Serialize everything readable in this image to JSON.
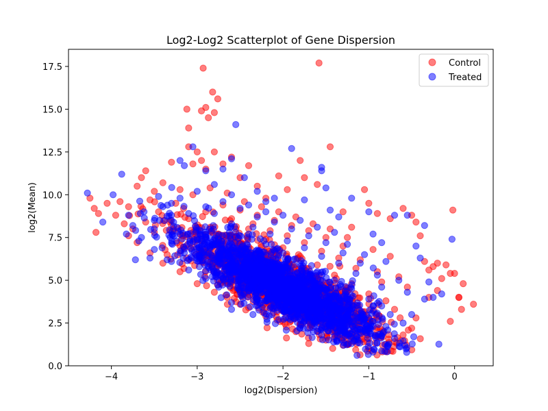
{
  "chart_data": {
    "type": "scatter",
    "title": "Log2-Log2 Scatterplot of Gene Dispersion",
    "xlabel": "log2(Dispersion)",
    "ylabel": "log2(Mean)",
    "xlim": [
      -4.5,
      0.45
    ],
    "ylim": [
      0,
      18.5
    ],
    "xticks": [
      -4,
      -3,
      -2,
      -1,
      0
    ],
    "xtick_labels": [
      "−4",
      "−3",
      "−2",
      "−1",
      "0"
    ],
    "yticks": [
      0.0,
      2.5,
      5.0,
      7.5,
      10.0,
      12.5,
      15.0,
      17.5
    ],
    "ytick_labels": [
      "0.0",
      "2.5",
      "5.0",
      "7.5",
      "10.0",
      "12.5",
      "15.0",
      "17.5"
    ],
    "grid": false,
    "legend_position": "top-right",
    "series": [
      {
        "name": "Control",
        "color": "#ff0000",
        "alpha": 0.5,
        "points": [
          [
            -4.25,
            9.8
          ],
          [
            -4.2,
            9.2
          ],
          [
            -4.18,
            7.8
          ],
          [
            -4.15,
            8.9
          ],
          [
            -4.05,
            9.5
          ],
          [
            -3.95,
            8.8
          ],
          [
            -3.9,
            9.6
          ],
          [
            -3.85,
            8.3
          ],
          [
            -3.8,
            9.3
          ],
          [
            -3.75,
            8.0
          ],
          [
            -3.7,
            10.5
          ],
          [
            -3.65,
            11.0
          ],
          [
            -3.6,
            11.4
          ],
          [
            -3.55,
            9.7
          ],
          [
            -3.5,
            10.2
          ],
          [
            -3.4,
            10.7
          ],
          [
            -3.3,
            11.9
          ],
          [
            -3.2,
            10.3
          ],
          [
            -3.1,
            12.8
          ],
          [
            -3.05,
            11.8
          ],
          [
            -3.0,
            12.5
          ],
          [
            -2.95,
            12.0
          ],
          [
            -2.9,
            11.5
          ],
          [
            -3.12,
            15.0
          ],
          [
            -3.1,
            13.9
          ],
          [
            -2.95,
            14.9
          ],
          [
            -2.9,
            15.1
          ],
          [
            -2.87,
            14.5
          ],
          [
            -2.8,
            14.8
          ],
          [
            -2.82,
            16.0
          ],
          [
            -2.76,
            15.6
          ],
          [
            -2.93,
            17.4
          ],
          [
            -2.8,
            12.5
          ],
          [
            -2.7,
            11.8
          ],
          [
            -2.6,
            12.2
          ],
          [
            -2.5,
            11.0
          ],
          [
            -2.4,
            11.7
          ],
          [
            -2.3,
            10.5
          ],
          [
            -2.2,
            9.8
          ],
          [
            -2.05,
            11.1
          ],
          [
            -1.95,
            10.3
          ],
          [
            -1.8,
            12.0
          ],
          [
            -1.75,
            11.0
          ],
          [
            -1.45,
            12.8
          ],
          [
            -1.58,
            17.7
          ],
          [
            -1.6,
            10.6
          ],
          [
            -1.3,
            9.0
          ],
          [
            -1.2,
            8.1
          ],
          [
            -1.05,
            10.3
          ],
          [
            -1.0,
            9.5
          ],
          [
            -0.9,
            8.9
          ],
          [
            -0.75,
            8.6
          ],
          [
            -0.6,
            9.2
          ],
          [
            -0.5,
            8.8
          ],
          [
            -0.45,
            8.4
          ],
          [
            -0.4,
            7.6
          ],
          [
            -0.35,
            6.1
          ],
          [
            -0.3,
            5.6
          ],
          [
            -0.25,
            5.8
          ],
          [
            -0.2,
            6.0
          ],
          [
            -0.15,
            5.1
          ],
          [
            -0.1,
            5.9
          ],
          [
            -0.05,
            5.4
          ],
          [
            -0.02,
            9.1
          ],
          [
            0.05,
            4.0
          ],
          [
            0.1,
            4.8
          ],
          [
            0.0,
            5.4
          ],
          [
            0.08,
            3.3
          ],
          [
            0.05,
            4.0
          ],
          [
            -0.05,
            2.6
          ],
          [
            0.22,
            3.6
          ],
          [
            -0.2,
            4.4
          ],
          [
            -0.3,
            4.0
          ],
          [
            -0.45,
            2.8
          ],
          [
            -0.5,
            2.2
          ],
          [
            -0.6,
            1.8
          ],
          [
            -0.7,
            1.4
          ],
          [
            -1.0,
            1.0
          ],
          [
            -1.3,
            1.2
          ],
          [
            -1.5,
            1.5
          ],
          [
            -1.7,
            1.3
          ],
          [
            -1.85,
            2.0
          ],
          [
            -2.0,
            2.6
          ],
          [
            -2.2,
            2.9
          ],
          [
            -2.4,
            3.4
          ],
          [
            -2.5,
            3.6
          ],
          [
            -2.65,
            4.0
          ],
          [
            -2.8,
            4.3
          ],
          [
            -3.0,
            4.8
          ],
          [
            -3.2,
            5.5
          ],
          [
            -3.4,
            6.0
          ],
          [
            -3.55,
            6.6
          ],
          [
            -3.7,
            7.2
          ],
          [
            -3.8,
            7.6
          ],
          [
            -2.6,
            8.6
          ],
          [
            -2.4,
            8.0
          ],
          [
            -2.2,
            7.4
          ],
          [
            -2.0,
            6.9
          ],
          [
            -1.8,
            6.4
          ],
          [
            -1.6,
            5.9
          ],
          [
            -1.4,
            5.3
          ],
          [
            -1.2,
            4.8
          ],
          [
            -1.0,
            4.2
          ],
          [
            -0.8,
            3.8
          ],
          [
            -0.7,
            3.3
          ],
          [
            -0.9,
            5.5
          ],
          [
            -1.1,
            6.2
          ],
          [
            -1.3,
            7.0
          ],
          [
            -1.5,
            7.5
          ],
          [
            -1.7,
            7.9
          ],
          [
            -1.9,
            8.2
          ],
          [
            -2.1,
            8.5
          ],
          [
            -2.3,
            8.8
          ],
          [
            -2.5,
            9.1
          ],
          [
            -2.7,
            9.4
          ],
          [
            -2.9,
            9.0
          ],
          [
            -3.1,
            8.6
          ],
          [
            -3.3,
            8.2
          ],
          [
            -3.5,
            7.8
          ],
          [
            -1.25,
            7.5
          ],
          [
            -0.95,
            6.8
          ],
          [
            -0.75,
            6.4
          ],
          [
            -0.65,
            5.2
          ],
          [
            -0.55,
            4.6
          ],
          [
            -0.85,
            4.9
          ],
          [
            -1.15,
            5.7
          ],
          [
            -1.35,
            6.3
          ],
          [
            -1.55,
            6.7
          ],
          [
            -1.75,
            7.2
          ],
          [
            -1.95,
            7.6
          ],
          [
            -2.15,
            7.9
          ],
          [
            -2.35,
            8.3
          ],
          [
            -2.55,
            8.0
          ],
          [
            -2.75,
            7.7
          ],
          [
            -2.95,
            7.3
          ],
          [
            -3.15,
            6.9
          ],
          [
            -3.35,
            6.5
          ],
          [
            -3.6,
            8.4
          ],
          [
            -3.45,
            9.0
          ],
          [
            -3.25,
            9.5
          ],
          [
            -3.05,
            10.0
          ],
          [
            -2.85,
            10.4
          ],
          [
            -2.65,
            10.1
          ],
          [
            -2.45,
            9.6
          ],
          [
            -2.25,
            9.3
          ],
          [
            -2.05,
            9.0
          ],
          [
            -1.85,
            8.7
          ],
          [
            -1.65,
            8.3
          ],
          [
            -1.45,
            8.0
          ]
        ]
      },
      {
        "name": "Treated",
        "color": "#0000ff",
        "alpha": 0.5,
        "points": [
          [
            -4.28,
            10.1
          ],
          [
            -4.1,
            8.4
          ],
          [
            -3.98,
            10.0
          ],
          [
            -3.88,
            11.2
          ],
          [
            -3.8,
            8.8
          ],
          [
            -3.72,
            6.2
          ],
          [
            -3.68,
            7.3
          ],
          [
            -3.62,
            9.0
          ],
          [
            -3.55,
            6.3
          ],
          [
            -3.5,
            8.5
          ],
          [
            -3.45,
            9.9
          ],
          [
            -3.3,
            9.5
          ],
          [
            -3.2,
            12.0
          ],
          [
            -3.15,
            11.7
          ],
          [
            -3.05,
            12.8
          ],
          [
            -2.9,
            11.4
          ],
          [
            -2.7,
            11.5
          ],
          [
            -2.6,
            12.1
          ],
          [
            -2.55,
            14.1
          ],
          [
            -2.45,
            11.0
          ],
          [
            -2.3,
            10.2
          ],
          [
            -2.2,
            9.6
          ],
          [
            -2.1,
            9.8
          ],
          [
            -1.9,
            12.7
          ],
          [
            -1.75,
            9.7
          ],
          [
            -1.55,
            11.6
          ],
          [
            -1.55,
            11.4
          ],
          [
            -1.5,
            10.4
          ],
          [
            -1.45,
            9.1
          ],
          [
            -1.35,
            8.7
          ],
          [
            -1.2,
            9.8
          ],
          [
            -1.0,
            9.0
          ],
          [
            -0.95,
            7.7
          ],
          [
            -0.85,
            7.2
          ],
          [
            -0.7,
            8.8
          ],
          [
            -0.55,
            8.8
          ],
          [
            -0.45,
            7.0
          ],
          [
            -0.35,
            8.2
          ],
          [
            -0.4,
            6.3
          ],
          [
            -0.3,
            4.9
          ],
          [
            -0.35,
            3.9
          ],
          [
            -0.25,
            4.0
          ],
          [
            -0.15,
            4.2
          ],
          [
            -0.03,
            7.4
          ],
          [
            -0.5,
            3.0
          ],
          [
            -0.6,
            2.5
          ],
          [
            -0.7,
            1.6
          ],
          [
            -0.95,
            0.8
          ],
          [
            -1.2,
            1.3
          ],
          [
            -1.4,
            1.7
          ],
          [
            -1.6,
            2.0
          ],
          [
            -1.75,
            2.6
          ],
          [
            -1.9,
            3.0
          ],
          [
            -2.1,
            3.5
          ],
          [
            -2.3,
            3.9
          ],
          [
            -2.5,
            4.3
          ],
          [
            -2.6,
            3.7
          ],
          [
            -2.75,
            4.6
          ],
          [
            -2.9,
            5.1
          ],
          [
            -3.1,
            5.6
          ],
          [
            -3.3,
            6.1
          ],
          [
            -3.5,
            6.8
          ],
          [
            -3.65,
            7.5
          ],
          [
            -3.75,
            8.2
          ],
          [
            -2.8,
            8.9
          ],
          [
            -2.6,
            8.3
          ],
          [
            -2.4,
            7.7
          ],
          [
            -2.2,
            7.1
          ],
          [
            -2.0,
            6.6
          ],
          [
            -1.8,
            6.0
          ],
          [
            -1.6,
            5.5
          ],
          [
            -1.4,
            5.0
          ],
          [
            -1.2,
            4.5
          ],
          [
            -1.0,
            3.9
          ],
          [
            -0.85,
            3.5
          ],
          [
            -0.75,
            3.0
          ],
          [
            -0.9,
            5.3
          ],
          [
            -1.1,
            6.0
          ],
          [
            -1.3,
            6.6
          ],
          [
            -1.5,
            7.2
          ],
          [
            -1.7,
            7.6
          ],
          [
            -1.9,
            8.0
          ],
          [
            -2.1,
            8.4
          ],
          [
            -2.3,
            8.7
          ],
          [
            -2.5,
            9.2
          ],
          [
            -2.7,
            9.6
          ],
          [
            -2.9,
            9.3
          ],
          [
            -3.1,
            8.9
          ],
          [
            -3.3,
            8.5
          ],
          [
            -3.5,
            8.0
          ],
          [
            -1.25,
            7.1
          ],
          [
            -1.05,
            6.5
          ],
          [
            -0.8,
            6.1
          ],
          [
            -0.65,
            5.0
          ],
          [
            -0.55,
            4.3
          ],
          [
            -0.85,
            4.6
          ],
          [
            -1.15,
            5.4
          ],
          [
            -1.35,
            6.0
          ],
          [
            -1.55,
            6.4
          ],
          [
            -1.75,
            6.9
          ],
          [
            -1.95,
            7.3
          ],
          [
            -2.15,
            7.7
          ],
          [
            -2.35,
            8.1
          ],
          [
            -2.55,
            7.8
          ],
          [
            -2.75,
            7.4
          ],
          [
            -2.95,
            7.0
          ],
          [
            -3.15,
            6.6
          ],
          [
            -3.35,
            6.2
          ],
          [
            -3.4,
            9.3
          ],
          [
            -3.2,
            9.8
          ],
          [
            -3.0,
            10.2
          ],
          [
            -2.8,
            10.6
          ],
          [
            -2.6,
            10.0
          ],
          [
            -2.4,
            9.4
          ],
          [
            -2.2,
            9.0
          ],
          [
            -2.0,
            8.8
          ],
          [
            -1.8,
            8.5
          ],
          [
            -1.6,
            8.1
          ],
          [
            -1.4,
            7.8
          ],
          [
            -2.45,
            5.7
          ],
          [
            -2.2,
            5.4
          ],
          [
            -2.0,
            5.0
          ],
          [
            -1.8,
            4.6
          ],
          [
            -1.6,
            4.3
          ],
          [
            -1.4,
            3.8
          ],
          [
            -1.2,
            3.3
          ],
          [
            -1.0,
            2.8
          ],
          [
            -0.8,
            2.3
          ],
          [
            -2.6,
            3.3
          ],
          [
            -2.35,
            3.0
          ],
          [
            -2.05,
            2.7
          ],
          [
            -1.8,
            2.2
          ],
          [
            -1.55,
            1.8
          ]
        ]
      }
    ]
  }
}
